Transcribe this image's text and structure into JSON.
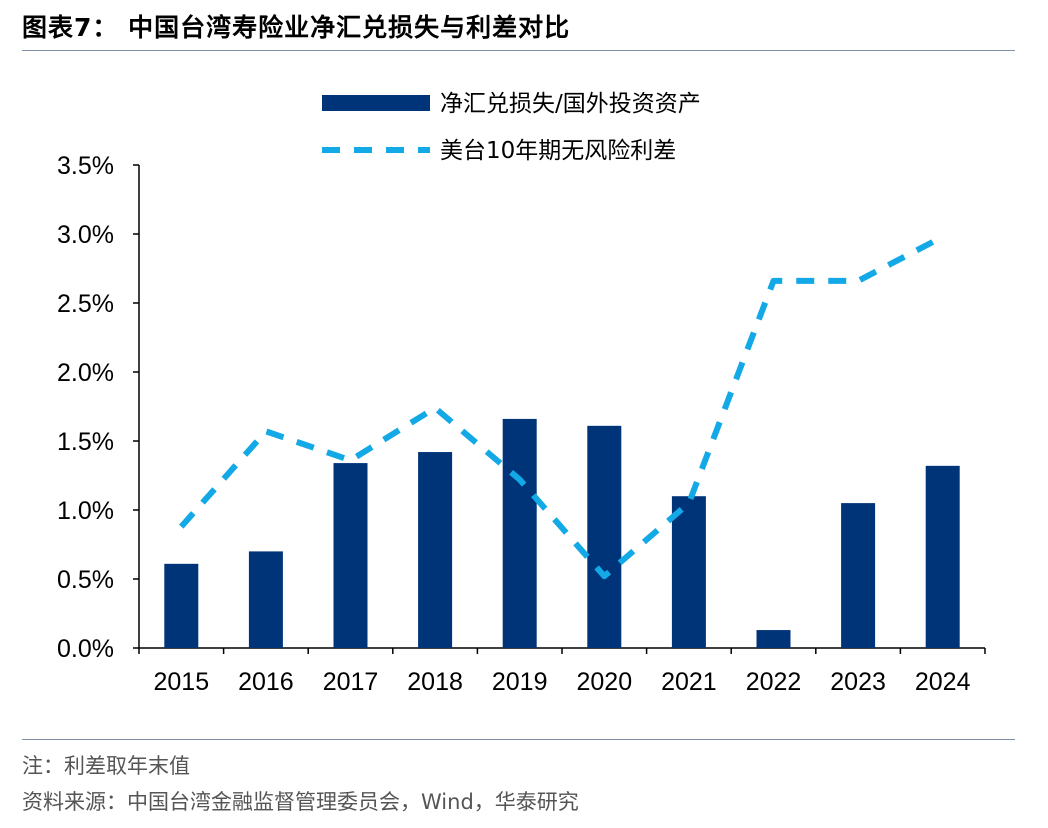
{
  "figure": {
    "title": "图表7： 中国台湾寿险业净汇兑损失与利差对比",
    "note": "注：利差取年末值",
    "source": "资料来源：中国台湾金融监督管理委员会，Wind，华泰研究"
  },
  "chart_data": {
    "type": "bar",
    "title": "中国台湾寿险业净汇兑损失与利差对比",
    "categories": [
      "2015",
      "2016",
      "2017",
      "2018",
      "2019",
      "2020",
      "2021",
      "2022",
      "2023",
      "2024"
    ],
    "series": [
      {
        "name": "净汇兑损失/国外投资资产",
        "type": "bar",
        "color": "#003478",
        "values": [
          0.61,
          0.7,
          1.34,
          1.42,
          1.66,
          1.61,
          1.1,
          0.13,
          1.05,
          1.32
        ]
      },
      {
        "name": "美台10年期无风险利差",
        "type": "line",
        "style": "dashed",
        "color": "#13a9e6",
        "values": [
          0.88,
          1.57,
          1.36,
          1.74,
          1.22,
          0.52,
          1.05,
          2.66,
          2.66,
          2.98
        ]
      }
    ],
    "y_tick_labels": [
      "0.0%",
      "0.5%",
      "1.0%",
      "1.5%",
      "2.0%",
      "2.5%",
      "3.0%",
      "3.5%"
    ],
    "ylim": [
      0,
      3.5
    ],
    "y_unit": "%",
    "xlabel": "",
    "ylabel": "",
    "legend_position": "top-center",
    "grid": false
  }
}
